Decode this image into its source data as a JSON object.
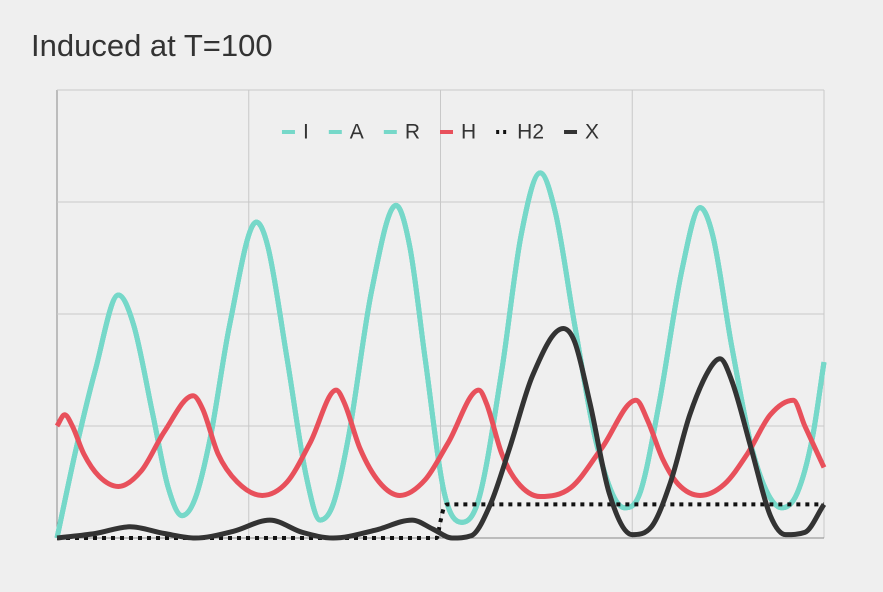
{
  "chart_data": {
    "type": "line",
    "title": "Induced at T=100",
    "xlim": [
      0,
      200
    ],
    "xticks": [
      0,
      50,
      100,
      150,
      200
    ],
    "ylim": [
      0,
      4
    ],
    "yticks": [
      0,
      1,
      2,
      3,
      4
    ],
    "grid": true,
    "legend": "top",
    "series": [
      {
        "name": "I",
        "color": "#76d8c9",
        "style": "solid",
        "x": [
          0,
          5,
          10,
          16,
          20,
          25,
          29,
          32.6,
          36,
          40,
          45,
          52,
          55,
          60,
          65,
          68.6,
          72,
          76,
          82,
          88.4,
          92,
          96,
          101,
          105.6,
          110,
          116,
          121,
          126,
          130,
          135,
          141,
          148,
          152,
          157,
          163,
          167.7,
          171,
          176,
          182,
          189,
          193,
          197,
          200
        ],
        "values": [
          0,
          0.8,
          1.5,
          2.17,
          1.9,
          1.1,
          0.45,
          0.2,
          0.35,
          0.9,
          1.9,
          2.82,
          2.6,
          1.6,
          0.55,
          0.16,
          0.3,
          0.9,
          2.2,
          2.97,
          2.6,
          1.6,
          0.4,
          0.14,
          0.35,
          1.5,
          2.7,
          3.26,
          2.9,
          1.9,
          0.8,
          0.27,
          0.4,
          1.2,
          2.4,
          2.95,
          2.7,
          1.7,
          0.7,
          0.27,
          0.4,
          0.9,
          1.57
        ]
      },
      {
        "name": "A",
        "color": "#76d8c9",
        "style": "solid",
        "x": [
          0,
          5,
          10,
          16,
          20,
          25,
          29,
          32.6,
          36,
          40,
          45,
          52,
          55,
          60,
          65,
          68.6,
          72,
          76,
          82,
          88.4,
          92,
          96,
          101,
          105.6,
          110,
          116,
          121,
          126,
          130,
          135,
          141,
          148,
          152,
          157,
          163,
          167.7,
          171,
          176,
          182,
          189,
          193,
          197,
          200
        ],
        "values": [
          0,
          0.8,
          1.5,
          2.17,
          1.9,
          1.1,
          0.45,
          0.2,
          0.35,
          0.9,
          1.9,
          2.82,
          2.6,
          1.6,
          0.55,
          0.16,
          0.3,
          0.9,
          2.2,
          2.97,
          2.6,
          1.6,
          0.4,
          0.14,
          0.35,
          1.5,
          2.7,
          3.26,
          2.9,
          1.9,
          0.8,
          0.27,
          0.4,
          1.2,
          2.4,
          2.95,
          2.7,
          1.7,
          0.7,
          0.27,
          0.4,
          0.9,
          1.57
        ]
      },
      {
        "name": "R",
        "color": "#76d8c9",
        "style": "solid",
        "x": [
          0,
          5,
          10,
          16,
          20,
          25,
          29,
          32.6,
          36,
          40,
          45,
          52,
          55,
          60,
          65,
          68.6,
          72,
          76,
          82,
          88.4,
          92,
          96,
          101,
          105.6,
          110,
          116,
          121,
          126,
          130,
          135,
          141,
          148,
          152,
          157,
          163,
          167.7,
          171,
          176,
          182,
          189,
          193,
          197,
          200
        ],
        "values": [
          0,
          0.8,
          1.5,
          2.17,
          1.9,
          1.1,
          0.45,
          0.2,
          0.35,
          0.9,
          1.9,
          2.82,
          2.6,
          1.6,
          0.55,
          0.16,
          0.3,
          0.9,
          2.2,
          2.97,
          2.6,
          1.6,
          0.4,
          0.14,
          0.35,
          1.5,
          2.7,
          3.26,
          2.9,
          1.9,
          0.8,
          0.27,
          0.4,
          1.2,
          2.4,
          2.95,
          2.7,
          1.7,
          0.7,
          0.27,
          0.4,
          0.9,
          1.57
        ]
      },
      {
        "name": "H",
        "color": "#e8505b",
        "style": "solid",
        "x": [
          0,
          2,
          4,
          7,
          11,
          16,
          22,
          28,
          35.5,
          38,
          42,
          47,
          53.5,
          60,
          66,
          72.8,
          75,
          79,
          84,
          89.4,
          96,
          102,
          110,
          112,
          116,
          120,
          126,
          134,
          142,
          151,
          154,
          158,
          162,
          167.7,
          174,
          180,
          186,
          192,
          195,
          200
        ],
        "values": [
          1.0,
          1.1,
          1.0,
          0.75,
          0.55,
          0.46,
          0.6,
          0.95,
          1.27,
          1.15,
          0.75,
          0.5,
          0.38,
          0.5,
          0.85,
          1.32,
          1.2,
          0.8,
          0.5,
          0.38,
          0.52,
          0.85,
          1.32,
          1.2,
          0.75,
          0.5,
          0.37,
          0.45,
          0.8,
          1.23,
          1.05,
          0.7,
          0.48,
          0.38,
          0.48,
          0.75,
          1.1,
          1.23,
          1.0,
          0.63
        ]
      },
      {
        "name": "H2",
        "color": "#111111",
        "style": "dotted",
        "x": [
          0,
          99,
          100,
          101,
          102,
          200
        ],
        "values": [
          0,
          0,
          0.15,
          0.28,
          0.3,
          0.3
        ]
      },
      {
        "name": "X",
        "color": "#333333",
        "style": "solid",
        "x": [
          0,
          10,
          19,
          28,
          36,
          46,
          55.5,
          64,
          72,
          83,
          92.6,
          98,
          103,
          108,
          113,
          118,
          124,
          132,
          135,
          139,
          144,
          150,
          155,
          160,
          165,
          170,
          172.9,
          176,
          181,
          186,
          190,
          195,
          200
        ],
        "values": [
          0,
          0.04,
          0.1,
          0.04,
          0,
          0.06,
          0.16,
          0.05,
          0,
          0.07,
          0.16,
          0.08,
          0,
          0.02,
          0.3,
          0.8,
          1.45,
          1.87,
          1.75,
          1.2,
          0.4,
          0.03,
          0.1,
          0.5,
          1.1,
          1.5,
          1.6,
          1.4,
          0.8,
          0.2,
          0.03,
          0.05,
          0.3
        ]
      }
    ]
  }
}
